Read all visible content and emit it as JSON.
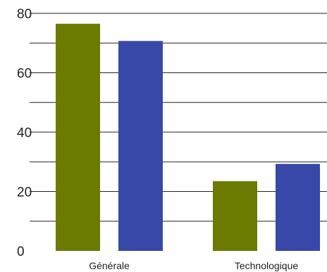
{
  "chart_data": {
    "type": "bar",
    "title": "",
    "xlabel": "",
    "ylabel": "",
    "categories": [
      "Générale",
      "Technologique"
    ],
    "series": [
      {
        "color": "#6b7a00",
        "values": [
          76.5,
          23.5
        ]
      },
      {
        "color": "#3848a8",
        "values": [
          70.7,
          29.3
        ]
      }
    ],
    "ylim": [
      0,
      80
    ],
    "yticks": [
      0,
      20,
      40,
      60,
      80
    ],
    "grid": true,
    "legend": "none"
  }
}
